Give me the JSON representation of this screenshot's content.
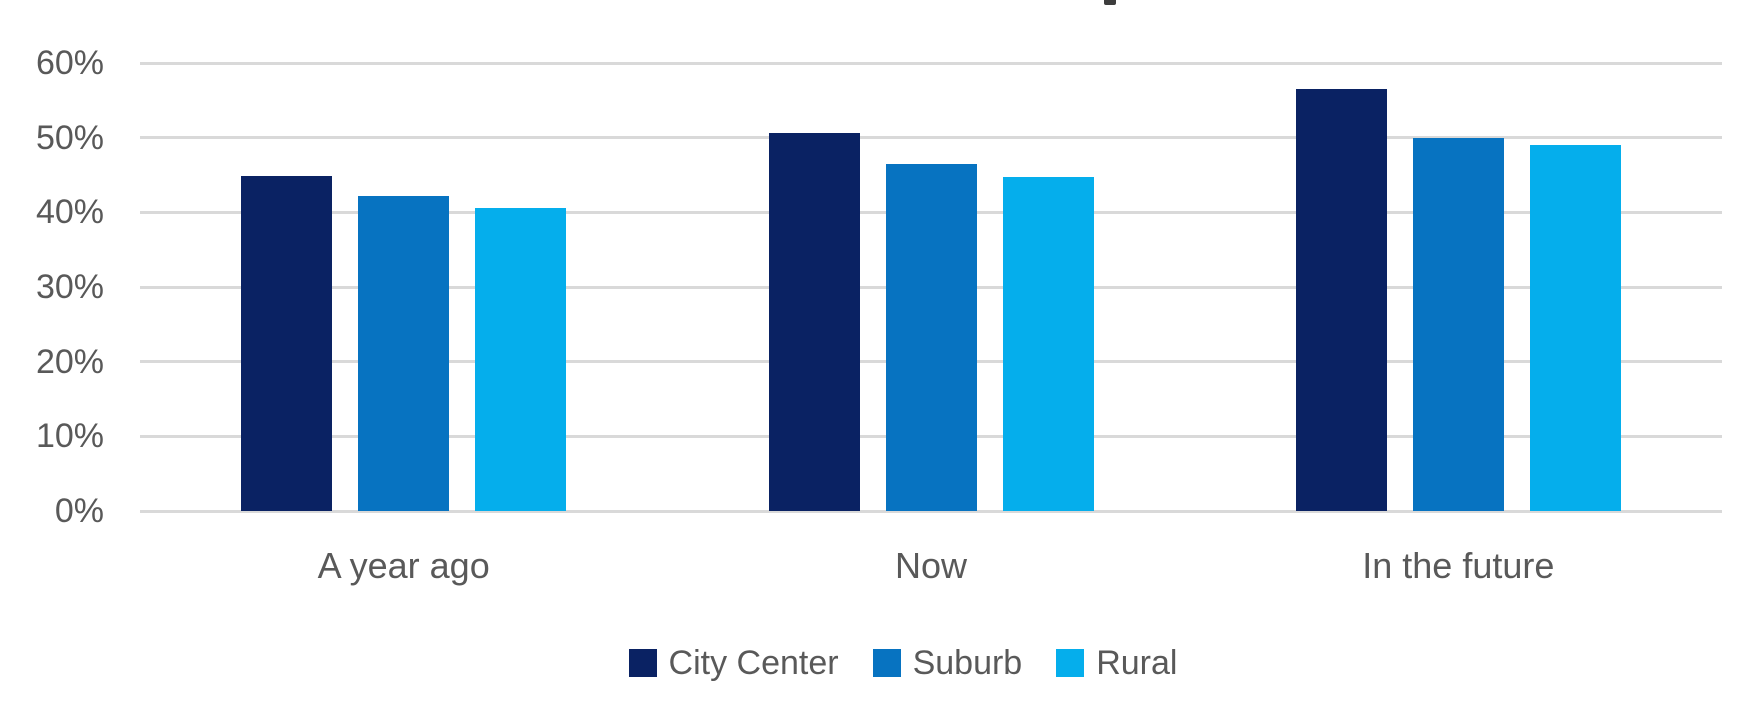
{
  "chart_data": {
    "type": "bar",
    "title": "",
    "title_clipped": true,
    "categories": [
      "A year ago",
      "Now",
      "In the future"
    ],
    "series": [
      {
        "name": "City Center",
        "color": "#0a2263",
        "values": [
          44.8,
          50.6,
          56.5
        ]
      },
      {
        "name": "Suburb",
        "color": "#0773c1",
        "values": [
          42.2,
          46.5,
          50.0
        ]
      },
      {
        "name": "Rural",
        "color": "#05aeec",
        "values": [
          40.6,
          44.7,
          49.0
        ]
      }
    ],
    "xlabel": "",
    "ylabel": "",
    "ylim": [
      0,
      60
    ],
    "yticks": [
      0,
      10,
      20,
      30,
      40,
      50,
      60
    ],
    "ytick_labels": [
      "0%",
      "10%",
      "20%",
      "30%",
      "40%",
      "50%",
      "60%"
    ],
    "grid": "horizontal",
    "gridline_color": "#d9d9d9",
    "axis_text_color": "#595959",
    "legend_position": "bottom",
    "legend_labels": [
      "City Center",
      "Suburb",
      "Rural"
    ]
  }
}
